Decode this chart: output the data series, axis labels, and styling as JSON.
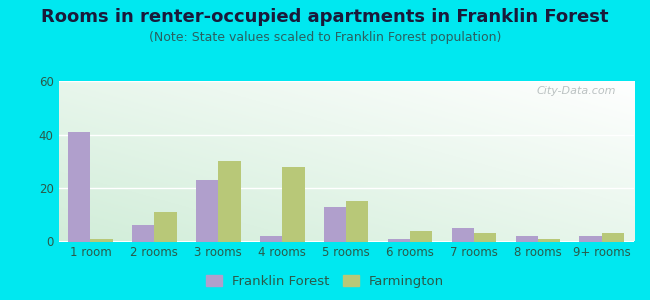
{
  "title": "Rooms in renter-occupied apartments in Franklin Forest",
  "subtitle": "(Note: State values scaled to Franklin Forest population)",
  "categories": [
    "1 room",
    "2 rooms",
    "3 rooms",
    "4 rooms",
    "5 rooms",
    "6 rooms",
    "7 rooms",
    "8 rooms",
    "9+ rooms"
  ],
  "franklin_forest": [
    41,
    6,
    23,
    2,
    13,
    1,
    5,
    2,
    2
  ],
  "farmington": [
    1,
    11,
    30,
    28,
    15,
    4,
    3,
    1,
    3
  ],
  "franklin_color": "#b09fcc",
  "farmington_color": "#b8c878",
  "background_outer": "#00e8f0",
  "ylim": [
    0,
    60
  ],
  "yticks": [
    0,
    20,
    40,
    60
  ],
  "bar_width": 0.35,
  "title_fontsize": 13,
  "subtitle_fontsize": 9,
  "tick_fontsize": 8.5,
  "legend_fontsize": 9.5,
  "watermark": "City-Data.com",
  "title_color": "#1a1a3a",
  "subtitle_color": "#2a6060",
  "tick_color": "#2a5a4a",
  "legend_label_color": "#2a5a4a"
}
